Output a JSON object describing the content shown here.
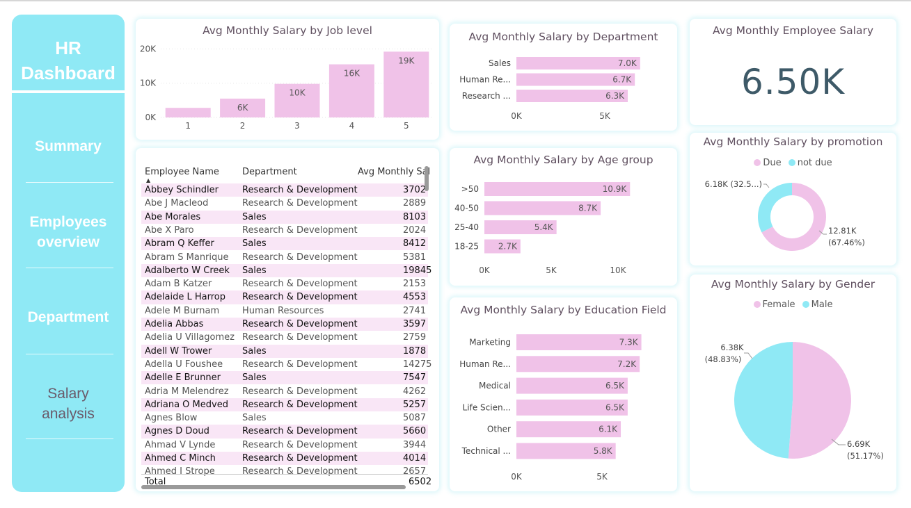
{
  "sidebar": {
    "title_line1": "HR",
    "title_line2": "Dashboard",
    "items": [
      {
        "line1": "Summary",
        "line2": ""
      },
      {
        "line1": "Employees",
        "line2": "overview"
      },
      {
        "line1": "Department",
        "line2": ""
      },
      {
        "line1": "Salary",
        "line2": "analysis"
      }
    ]
  },
  "colors": {
    "pink": "#f0c2e8",
    "cyan": "#8fe9f5",
    "kpi": "#3e5a68"
  },
  "kpi": {
    "title": "Avg Monthly Employee Salary",
    "value": "6.50K"
  },
  "table": {
    "columns": [
      "Employee Name",
      "Department",
      "Avg Monthly Sal"
    ],
    "rows": [
      [
        "Abbey Schindler",
        "Research & Development",
        "3702"
      ],
      [
        "Abe J Macleod",
        "Research & Development",
        "2889"
      ],
      [
        "Abe Morales",
        "Sales",
        "8103"
      ],
      [
        "Abe X Paro",
        "Research & Development",
        "2024"
      ],
      [
        "Abram Q Keffer",
        "Sales",
        "8412"
      ],
      [
        "Abram S Manrique",
        "Research & Development",
        "5381"
      ],
      [
        "Adalberto W Creek",
        "Sales",
        "19845"
      ],
      [
        "Adam B Katzer",
        "Research & Development",
        "2153"
      ],
      [
        "Adelaide L Harrop",
        "Research & Development",
        "4553"
      ],
      [
        "Adele M Burnam",
        "Human Resources",
        "2741"
      ],
      [
        "Adelia Abbas",
        "Research & Development",
        "3597"
      ],
      [
        "Adelia U Villagomez",
        "Research & Development",
        "2759"
      ],
      [
        "Adell W Trower",
        "Sales",
        "1878"
      ],
      [
        "Adella U Foushee",
        "Research & Development",
        "14275"
      ],
      [
        "Adelle E Brunner",
        "Sales",
        "7547"
      ],
      [
        "Adria M Melendrez",
        "Research & Development",
        "4262"
      ],
      [
        "Adriana O Medved",
        "Research & Development",
        "5257"
      ],
      [
        "Agnes Blow",
        "Sales",
        "5087"
      ],
      [
        "Agnes D Doud",
        "Research & Development",
        "5660"
      ],
      [
        "Ahmad V Lynde",
        "Research & Development",
        "3944"
      ],
      [
        "Ahmed C Minch",
        "Research & Development",
        "4014"
      ],
      [
        "Ahmed I Strope",
        "Research & Development",
        "2657"
      ]
    ],
    "total_label": "Total",
    "total_value": "6502"
  },
  "chart_data": [
    {
      "type": "bar",
      "title": "Avg Monthly Salary by Job level",
      "categories": [
        "1",
        "2",
        "3",
        "4",
        "5"
      ],
      "values": [
        2.8,
        5.5,
        9.8,
        15.5,
        19.2
      ],
      "data_labels": [
        "",
        "6K",
        "10K",
        "16K",
        "19K"
      ],
      "yticks": [
        "0K",
        "10K",
        "20K"
      ],
      "ylim": [
        0,
        21.7
      ]
    },
    {
      "type": "bar",
      "orientation": "horizontal",
      "title": "Avg Monthly Salary by Department",
      "categories": [
        "Sales",
        "Human Re...",
        "Research ..."
      ],
      "values": [
        7.0,
        6.7,
        6.3
      ],
      "data_labels": [
        "7.0K",
        "6.7K",
        "6.3K"
      ],
      "xticks": [
        "0K",
        "5K"
      ]
    },
    {
      "type": "bar",
      "orientation": "horizontal",
      "title": "Avg Monthly Salary by Age group",
      "categories": [
        ">50",
        "40-50",
        "25-40",
        "18-25"
      ],
      "values": [
        10.9,
        8.7,
        5.4,
        2.7
      ],
      "data_labels": [
        "10.9K",
        "8.7K",
        "5.4K",
        "2.7K"
      ],
      "xticks": [
        "0K",
        "5K",
        "10K"
      ]
    },
    {
      "type": "bar",
      "orientation": "horizontal",
      "title": "Avg Monthly Salary by Education Field",
      "categories": [
        "Marketing",
        "Human Re...",
        "Medical",
        "Life Scien...",
        "Other",
        "Technical ..."
      ],
      "values": [
        7.3,
        7.2,
        6.5,
        6.5,
        6.1,
        5.8
      ],
      "data_labels": [
        "7.3K",
        "7.2K",
        "6.5K",
        "6.5K",
        "6.1K",
        "5.8K"
      ],
      "xticks": [
        "0K",
        "5K"
      ]
    },
    {
      "type": "pie",
      "style": "donut",
      "title": "Avg Monthly Salary by promotion",
      "legend": [
        "Due",
        "not due"
      ],
      "values": [
        12.81,
        6.18
      ],
      "labels": [
        [
          "12.81K",
          "(67.46%)"
        ],
        [
          "6.18K (32.5...)"
        ]
      ]
    },
    {
      "type": "pie",
      "title": "Avg Monthly Salary by Gender",
      "legend": [
        "Female",
        "Male"
      ],
      "values": [
        6.69,
        6.38
      ],
      "labels": [
        [
          "6.69K",
          "(51.17%)"
        ],
        [
          "6.38K",
          "(48.83%)"
        ]
      ]
    }
  ]
}
